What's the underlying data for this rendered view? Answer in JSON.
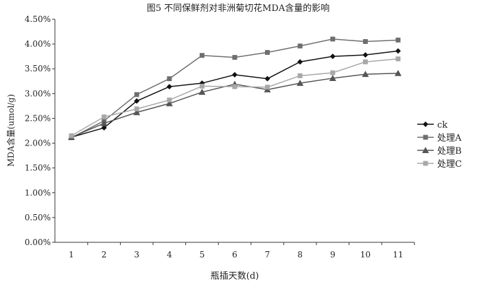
{
  "chart_data": {
    "type": "line",
    "title": "图5   不同保鲜剂对非洲菊切花MDA含量的影响",
    "xlabel": "瓶插天数(d)",
    "ylabel": "MDA含量(umol/g)",
    "x": [
      1,
      2,
      3,
      4,
      5,
      6,
      7,
      8,
      9,
      10,
      11
    ],
    "ylim": [
      0,
      4.5
    ],
    "yticks": [
      "0.00%",
      "0.50%",
      "1.00%",
      "1.50%",
      "2.00%",
      "2.50%",
      "3.00%",
      "3.50%",
      "4.00%",
      "4.50%"
    ],
    "grid": false,
    "legend_position": "right",
    "series": [
      {
        "name": "ck",
        "marker": "diamond",
        "color": "#111111",
        "values": [
          2.12,
          2.31,
          2.85,
          3.14,
          3.21,
          3.38,
          3.3,
          3.64,
          3.75,
          3.78,
          3.86
        ]
      },
      {
        "name": "处理A",
        "marker": "square",
        "color": "#6e6e6e",
        "values": [
          2.11,
          2.45,
          2.98,
          3.3,
          3.77,
          3.73,
          3.83,
          3.96,
          4.1,
          4.05,
          4.08
        ]
      },
      {
        "name": "处理B",
        "marker": "triangle",
        "color": "#555555",
        "values": [
          2.12,
          2.4,
          2.62,
          2.8,
          3.03,
          3.19,
          3.08,
          3.21,
          3.31,
          3.39,
          3.41
        ]
      },
      {
        "name": "处理C",
        "marker": "square",
        "color": "#a8a8a8",
        "values": [
          2.15,
          2.53,
          2.69,
          2.87,
          3.15,
          3.14,
          3.13,
          3.36,
          3.42,
          3.64,
          3.7
        ]
      }
    ]
  }
}
